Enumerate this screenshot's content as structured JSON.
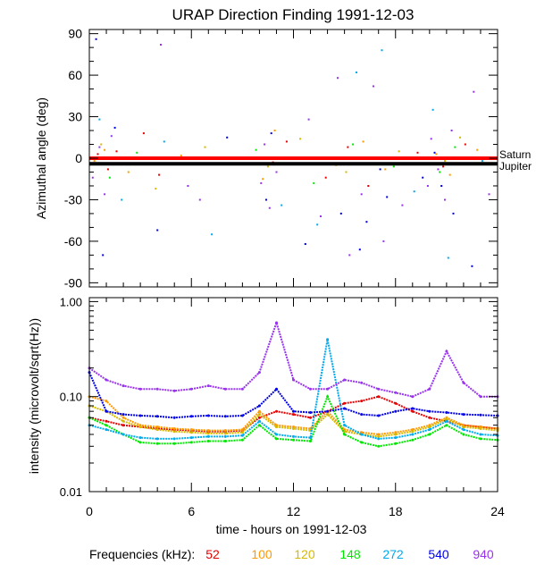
{
  "title": "URAP Direction Finding  1991-12-03",
  "legend": {
    "label": "Frequencies (kHz):",
    "entries": [
      {
        "name": "52",
        "color": "#e60000"
      },
      {
        "name": "100",
        "color": "#ff9900"
      },
      {
        "name": "120",
        "color": "#d6b800"
      },
      {
        "name": "148",
        "color": "#00e600"
      },
      {
        "name": "272",
        "color": "#00aaee"
      },
      {
        "name": "540",
        "color": "#0000e6"
      },
      {
        "name": "940",
        "color": "#9933ee"
      }
    ]
  },
  "chart_data": [
    {
      "type": "scatter",
      "title": "URAP Direction Finding  1991-12-03",
      "xlabel": "time - hours on 1991-12-03",
      "ylabel": "Azimuthal angle (deg)",
      "xlim": [
        0,
        24
      ],
      "ylim": [
        -93,
        93
      ],
      "yticks": [
        90,
        60,
        30,
        0,
        -30,
        -60,
        -90
      ],
      "reference_lines": [
        {
          "name": "Saturn",
          "y": 0,
          "color": "#ff0000"
        },
        {
          "name": "Jupiter",
          "y": -4,
          "color": "#000000"
        }
      ],
      "series": [
        {
          "name": "52",
          "points": [
            [
              0.5,
              3
            ],
            [
              1.1,
              -8
            ],
            [
              1.6,
              5
            ],
            [
              3.2,
              18
            ],
            [
              4.1,
              -12
            ],
            [
              10.8,
              -3
            ],
            [
              11.6,
              12
            ],
            [
              13.9,
              -14
            ],
            [
              15.2,
              8
            ],
            [
              16.4,
              -20
            ],
            [
              19.3,
              4
            ],
            [
              20.8,
              -6
            ],
            [
              22.1,
              10
            ]
          ]
        },
        {
          "name": "100",
          "points": [
            [
              0.3,
              -2
            ],
            [
              0.9,
              6
            ],
            [
              2.3,
              -10
            ],
            [
              5.4,
              2
            ],
            [
              10.2,
              -15
            ],
            [
              10.9,
              20
            ],
            [
              14.5,
              -5
            ],
            [
              16.1,
              12
            ],
            [
              17.4,
              -8
            ],
            [
              20.4,
              3
            ],
            [
              21.2,
              -12
            ],
            [
              22.8,
              6
            ]
          ]
        },
        {
          "name": "120",
          "points": [
            [
              0.7,
              10
            ],
            [
              1.4,
              -4
            ],
            [
              3.9,
              -22
            ],
            [
              6.8,
              8
            ],
            [
              10.5,
              -6
            ],
            [
              12.4,
              14
            ],
            [
              15.1,
              -10
            ],
            [
              18.2,
              5
            ],
            [
              20.9,
              -2
            ],
            [
              21.8,
              15
            ]
          ]
        },
        {
          "name": "148",
          "points": [
            [
              1.2,
              -14
            ],
            [
              2.8,
              4
            ],
            [
              9.8,
              6
            ],
            [
              13.2,
              -18
            ],
            [
              15.5,
              10
            ],
            [
              17.9,
              -6
            ],
            [
              20.6,
              -10
            ],
            [
              21.5,
              8
            ],
            [
              22.9,
              -4
            ]
          ]
        },
        {
          "name": "272",
          "points": [
            [
              0.6,
              28
            ],
            [
              1.9,
              -30
            ],
            [
              4.4,
              12
            ],
            [
              7.2,
              -55
            ],
            [
              11.3,
              -34
            ],
            [
              13.4,
              -48
            ],
            [
              15.7,
              62
            ],
            [
              17.2,
              78
            ],
            [
              19.1,
              -24
            ],
            [
              20.2,
              35
            ],
            [
              21.1,
              -72
            ],
            [
              23.1,
              -2
            ]
          ]
        },
        {
          "name": "540",
          "points": [
            [
              0.4,
              86
            ],
            [
              0.8,
              -70
            ],
            [
              1.5,
              22
            ],
            [
              4.0,
              -52
            ],
            [
              8.1,
              15
            ],
            [
              10.4,
              -30
            ],
            [
              10.7,
              18
            ],
            [
              12.7,
              -62
            ],
            [
              14.8,
              -40
            ],
            [
              15.9,
              -66
            ],
            [
              16.3,
              -46
            ],
            [
              17.1,
              -8
            ],
            [
              17.5,
              -28
            ],
            [
              19.6,
              -14
            ],
            [
              20.3,
              4
            ],
            [
              20.7,
              -20
            ],
            [
              21.4,
              -40
            ],
            [
              22.5,
              -78
            ]
          ]
        },
        {
          "name": "940",
          "points": [
            [
              0.2,
              -14
            ],
            [
              0.6,
              8
            ],
            [
              0.9,
              -26
            ],
            [
              1.3,
              16
            ],
            [
              4.2,
              82
            ],
            [
              5.8,
              -20
            ],
            [
              6.5,
              -30
            ],
            [
              10.1,
              -18
            ],
            [
              10.3,
              10
            ],
            [
              10.6,
              -36
            ],
            [
              11.0,
              -10
            ],
            [
              12.9,
              28
            ],
            [
              13.6,
              -42
            ],
            [
              14.6,
              58
            ],
            [
              15.3,
              -70
            ],
            [
              16.0,
              -26
            ],
            [
              16.7,
              52
            ],
            [
              17.3,
              -60
            ],
            [
              18.4,
              -34
            ],
            [
              19.9,
              -20
            ],
            [
              20.1,
              14
            ],
            [
              20.5,
              -8
            ],
            [
              20.9,
              -30
            ],
            [
              21.3,
              20
            ],
            [
              22.6,
              48
            ],
            [
              23.5,
              -26
            ]
          ]
        }
      ]
    },
    {
      "type": "line",
      "xlabel": "time - hours on 1991-12-03",
      "ylabel": "intensity (microvolt/sqrt(Hz))",
      "yscale": "log",
      "xlim": [
        0,
        24
      ],
      "ylim": [
        0.01,
        1.1
      ],
      "xticks": [
        0,
        6,
        12,
        18,
        24
      ],
      "yticks": [
        1.0,
        0.1,
        0.01
      ],
      "ytick_labels": [
        "1.00",
        "0.10",
        "0.01"
      ],
      "series": [
        {
          "name": "52",
          "x": [
            0,
            1,
            2,
            3,
            4,
            5,
            6,
            7,
            8,
            9,
            10,
            11,
            12,
            13,
            14,
            15,
            16,
            17,
            18,
            19,
            20,
            21,
            22,
            23,
            24
          ],
          "y": [
            0.06,
            0.055,
            0.05,
            0.048,
            0.046,
            0.045,
            0.044,
            0.043,
            0.043,
            0.044,
            0.06,
            0.07,
            0.065,
            0.06,
            0.07,
            0.085,
            0.09,
            0.1,
            0.085,
            0.07,
            0.06,
            0.055,
            0.05,
            0.048,
            0.046
          ]
        },
        {
          "name": "100",
          "x": [
            0,
            1,
            2,
            3,
            4,
            5,
            6,
            7,
            8,
            9,
            10,
            11,
            12,
            13,
            14,
            15,
            16,
            17,
            18,
            19,
            20,
            21,
            22,
            23,
            24
          ],
          "y": [
            0.1,
            0.09,
            0.06,
            0.05,
            0.048,
            0.046,
            0.045,
            0.044,
            0.044,
            0.045,
            0.07,
            0.05,
            0.048,
            0.046,
            0.07,
            0.045,
            0.042,
            0.04,
            0.042,
            0.045,
            0.05,
            0.06,
            0.05,
            0.048,
            0.046
          ]
        },
        {
          "name": "120",
          "x": [
            0,
            1,
            2,
            3,
            4,
            5,
            6,
            7,
            8,
            9,
            10,
            11,
            12,
            13,
            14,
            15,
            16,
            17,
            18,
            19,
            20,
            21,
            22,
            23,
            24
          ],
          "y": [
            0.08,
            0.07,
            0.055,
            0.048,
            0.045,
            0.043,
            0.042,
            0.041,
            0.041,
            0.042,
            0.065,
            0.048,
            0.046,
            0.044,
            0.065,
            0.043,
            0.04,
            0.038,
            0.04,
            0.043,
            0.048,
            0.058,
            0.048,
            0.046,
            0.044
          ]
        },
        {
          "name": "148",
          "x": [
            0,
            1,
            2,
            3,
            4,
            5,
            6,
            7,
            8,
            9,
            10,
            11,
            12,
            13,
            14,
            15,
            16,
            17,
            18,
            19,
            20,
            21,
            22,
            23,
            24
          ],
          "y": [
            0.06,
            0.05,
            0.04,
            0.033,
            0.032,
            0.032,
            0.033,
            0.034,
            0.034,
            0.035,
            0.05,
            0.036,
            0.035,
            0.034,
            0.1,
            0.04,
            0.033,
            0.03,
            0.032,
            0.035,
            0.04,
            0.05,
            0.04,
            0.036,
            0.035
          ]
        },
        {
          "name": "272",
          "x": [
            0,
            1,
            2,
            3,
            4,
            5,
            6,
            7,
            8,
            9,
            10,
            11,
            12,
            13,
            14,
            15,
            16,
            17,
            18,
            19,
            20,
            21,
            22,
            23,
            24
          ],
          "y": [
            0.05,
            0.045,
            0.04,
            0.037,
            0.036,
            0.036,
            0.037,
            0.038,
            0.038,
            0.039,
            0.055,
            0.04,
            0.038,
            0.037,
            0.4,
            0.05,
            0.04,
            0.036,
            0.037,
            0.04,
            0.045,
            0.055,
            0.045,
            0.04,
            0.039
          ]
        },
        {
          "name": "540",
          "x": [
            0,
            1,
            2,
            3,
            4,
            5,
            6,
            7,
            8,
            9,
            10,
            11,
            12,
            13,
            14,
            15,
            16,
            17,
            18,
            19,
            20,
            21,
            22,
            23,
            24
          ],
          "y": [
            0.18,
            0.07,
            0.065,
            0.063,
            0.062,
            0.06,
            0.062,
            0.063,
            0.062,
            0.063,
            0.08,
            0.12,
            0.07,
            0.068,
            0.07,
            0.075,
            0.065,
            0.063,
            0.07,
            0.075,
            0.07,
            0.068,
            0.065,
            0.064,
            0.063
          ]
        },
        {
          "name": "940",
          "x": [
            0,
            1,
            2,
            3,
            4,
            5,
            6,
            7,
            8,
            9,
            10,
            11,
            12,
            13,
            14,
            15,
            16,
            17,
            18,
            19,
            20,
            21,
            22,
            23,
            24
          ],
          "y": [
            0.2,
            0.15,
            0.13,
            0.12,
            0.12,
            0.115,
            0.12,
            0.13,
            0.12,
            0.12,
            0.18,
            0.6,
            0.15,
            0.12,
            0.12,
            0.15,
            0.14,
            0.12,
            0.11,
            0.1,
            0.12,
            0.3,
            0.14,
            0.1,
            0.1
          ]
        }
      ]
    }
  ]
}
